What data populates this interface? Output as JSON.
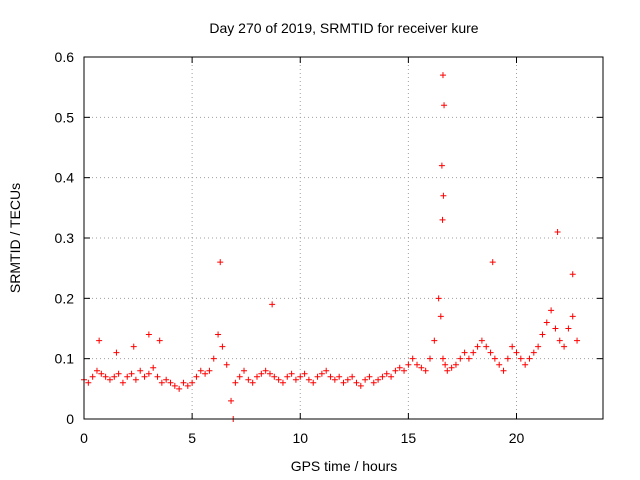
{
  "chart_data": {
    "type": "scatter",
    "title": "Day 270 of 2019, SRMTID for receiver kure",
    "xlabel": "GPS time / hours",
    "ylabel": "SRMTID / TECUs",
    "xlim": [
      0,
      24
    ],
    "ylim": [
      0,
      0.6
    ],
    "xticks": [
      0,
      5,
      10,
      15,
      20
    ],
    "xtick_labels": [
      "0",
      "5",
      "10",
      "15",
      "20"
    ],
    "yticks": [
      0,
      0.1,
      0.2,
      0.3,
      0.4,
      0.5,
      0.6
    ],
    "ytick_labels": [
      "0",
      "0.1",
      "0.2",
      "0.3",
      "0.4",
      "0.5",
      "0.6"
    ],
    "grid": true,
    "marker": "+",
    "series": [
      {
        "name": "SRMTID",
        "color": "#ff0000",
        "x": [
          0.0,
          0.2,
          0.4,
          0.6,
          0.8,
          1.0,
          1.2,
          1.4,
          1.6,
          1.8,
          2.0,
          2.2,
          2.4,
          2.6,
          2.8,
          3.0,
          3.2,
          3.4,
          3.6,
          3.8,
          4.0,
          4.2,
          4.4,
          4.6,
          4.8,
          5.0,
          5.2,
          5.4,
          5.6,
          5.8,
          6.0,
          6.2,
          6.4,
          6.6,
          6.8,
          7.0,
          7.2,
          7.4,
          7.6,
          7.8,
          8.0,
          8.2,
          8.4,
          8.6,
          8.8,
          9.0,
          9.2,
          9.4,
          9.6,
          9.8,
          10.0,
          10.2,
          10.4,
          10.6,
          10.8,
          11.0,
          11.2,
          11.4,
          11.6,
          11.8,
          12.0,
          12.2,
          12.4,
          12.6,
          12.8,
          13.0,
          13.2,
          13.4,
          13.6,
          13.8,
          14.0,
          14.2,
          14.4,
          14.6,
          14.8,
          15.0,
          15.2,
          15.4,
          15.6,
          15.8,
          16.0,
          16.2,
          16.4,
          16.5,
          16.6,
          16.7,
          16.8,
          17.0,
          17.2,
          17.4,
          17.6,
          17.8,
          18.0,
          18.2,
          18.4,
          18.6,
          18.8,
          19.0,
          19.2,
          19.4,
          19.6,
          19.8,
          20.0,
          20.2,
          20.4,
          20.6,
          20.8,
          21.0,
          21.2,
          21.4,
          21.6,
          21.8,
          22.0,
          22.2,
          22.4,
          22.6,
          22.8,
          0.7,
          2.3,
          3.0,
          6.3,
          8.7,
          16.55,
          16.6,
          16.65,
          16.62,
          16.58,
          18.9,
          21.9,
          22.6,
          6.9,
          1.5,
          3.5
        ],
        "y": [
          0.065,
          0.06,
          0.07,
          0.08,
          0.075,
          0.07,
          0.065,
          0.07,
          0.075,
          0.06,
          0.07,
          0.075,
          0.065,
          0.08,
          0.07,
          0.075,
          0.085,
          0.07,
          0.06,
          0.065,
          0.06,
          0.055,
          0.05,
          0.06,
          0.055,
          0.06,
          0.07,
          0.08,
          0.075,
          0.08,
          0.1,
          0.14,
          0.12,
          0.09,
          0.03,
          0.06,
          0.07,
          0.08,
          0.065,
          0.06,
          0.07,
          0.075,
          0.08,
          0.075,
          0.07,
          0.065,
          0.06,
          0.07,
          0.075,
          0.065,
          0.07,
          0.075,
          0.065,
          0.06,
          0.07,
          0.075,
          0.08,
          0.07,
          0.065,
          0.07,
          0.06,
          0.065,
          0.07,
          0.06,
          0.055,
          0.065,
          0.07,
          0.06,
          0.065,
          0.07,
          0.075,
          0.07,
          0.08,
          0.085,
          0.08,
          0.09,
          0.1,
          0.09,
          0.085,
          0.08,
          0.1,
          0.13,
          0.2,
          0.17,
          0.1,
          0.09,
          0.08,
          0.085,
          0.09,
          0.1,
          0.11,
          0.1,
          0.11,
          0.12,
          0.13,
          0.12,
          0.11,
          0.1,
          0.09,
          0.08,
          0.1,
          0.12,
          0.11,
          0.1,
          0.09,
          0.1,
          0.11,
          0.12,
          0.14,
          0.16,
          0.18,
          0.15,
          0.13,
          0.12,
          0.15,
          0.17,
          0.13,
          0.13,
          0.12,
          0.14,
          0.26,
          0.19,
          0.42,
          0.57,
          0.52,
          0.37,
          0.33,
          0.26,
          0.31,
          0.24,
          0.0,
          0.11,
          0.13
        ]
      }
    ]
  }
}
